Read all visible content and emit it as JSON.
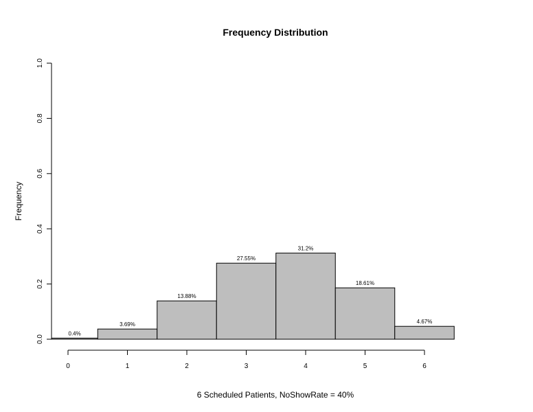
{
  "chart_data": {
    "type": "bar",
    "title": "Frequency Distribution",
    "xlabel": "6 Scheduled Patients,  NoShowRate = 40%",
    "ylabel": "Frequency",
    "categories": [
      0,
      1,
      2,
      3,
      4,
      5,
      6
    ],
    "values": [
      0.004,
      0.0369,
      0.1388,
      0.2755,
      0.312,
      0.1861,
      0.0467
    ],
    "data_labels": [
      "0.4%",
      "3.69%",
      "13.88%",
      "27.55%",
      "31.2%",
      "18.61%",
      "4.67%"
    ],
    "ylim": [
      0,
      1.0
    ],
    "yticks": [
      "0.0",
      "0.2",
      "0.4",
      "0.6",
      "0.8",
      "1.0"
    ],
    "xticks": [
      "0",
      "1",
      "2",
      "3",
      "4",
      "5",
      "6"
    ],
    "bar_color": "#bebebe",
    "grid": false
  }
}
